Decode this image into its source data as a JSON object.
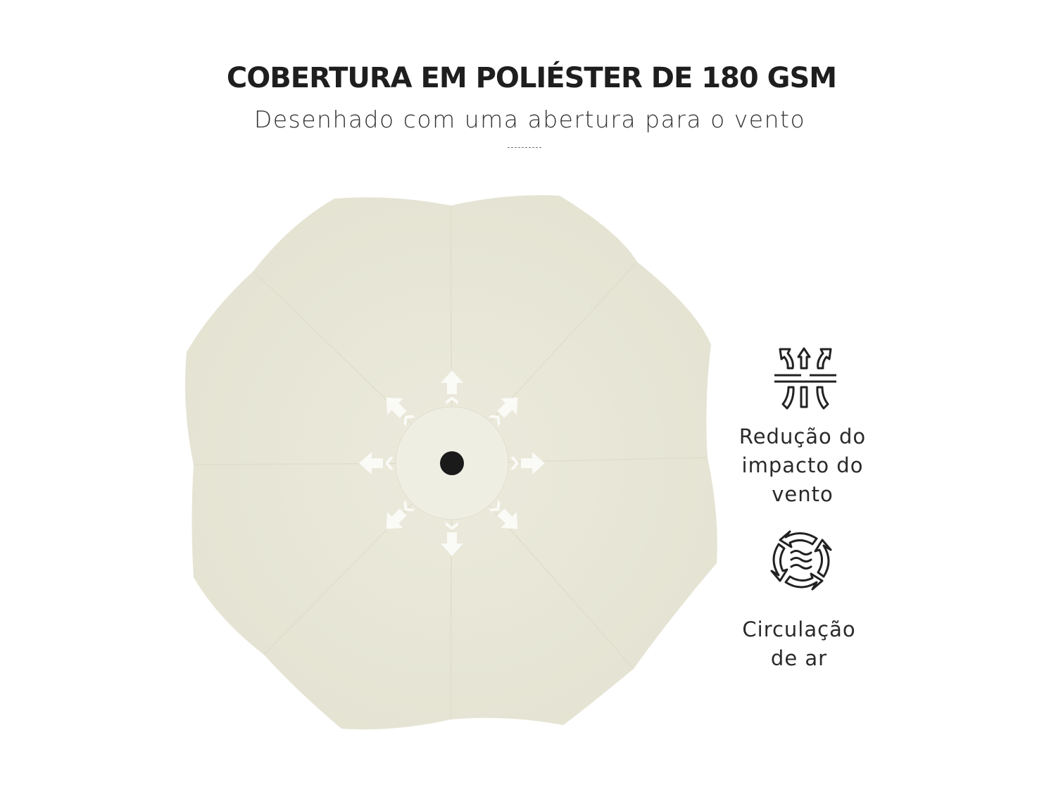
{
  "header": {
    "title": "COBERTURA EM POLIÉSTER DE 180 GSM",
    "subtitle": "Desenhado com uma abertura para o vento"
  },
  "product": {
    "canopy_color": "#ebeadc",
    "vent_color": "#efeee3",
    "pole_color": "#1a1a1a"
  },
  "features": [
    {
      "icon": "wind-reduction-icon",
      "label": "Redução do impacto do vento",
      "lines": [
        "Redução do",
        "impacto do",
        "vento"
      ]
    },
    {
      "icon": "air-circulation-icon",
      "label": "Circulação de ar",
      "lines": [
        "Circulação",
        "de ar"
      ]
    }
  ]
}
